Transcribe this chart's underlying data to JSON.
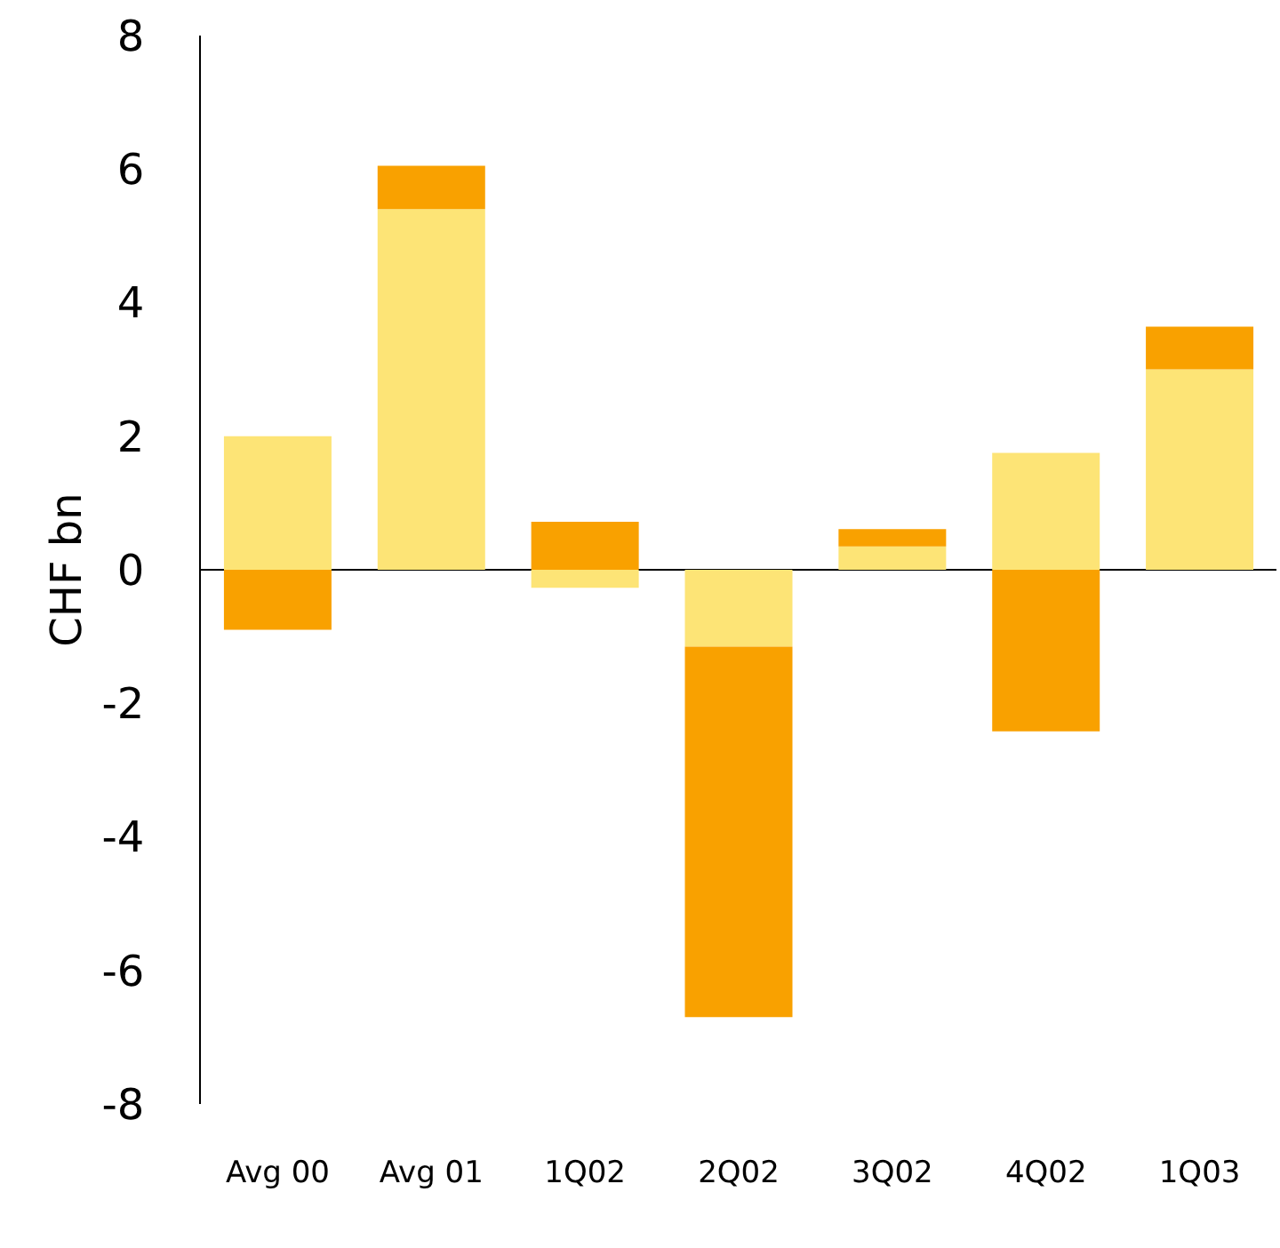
{
  "chart_data": {
    "type": "bar",
    "stacked": true,
    "ylabel": "CHF bn",
    "categories": [
      "Avg 00",
      "Avg 01",
      "1Q02",
      "2Q02",
      "3Q02",
      "4Q02",
      "1Q03"
    ],
    "series": [
      {
        "color": "#fde476",
        "values": [
          2.0,
          5.4,
          -0.27,
          -1.15,
          0.35,
          1.75,
          3.0
        ]
      },
      {
        "color": "#f9a100",
        "values": [
          -0.9,
          0.65,
          0.72,
          -5.55,
          0.26,
          -2.42,
          0.64
        ]
      }
    ],
    "ylim": [
      -8,
      8
    ],
    "yticks": [
      -8,
      -6,
      -4,
      -2,
      0,
      2,
      4,
      6,
      8
    ]
  }
}
